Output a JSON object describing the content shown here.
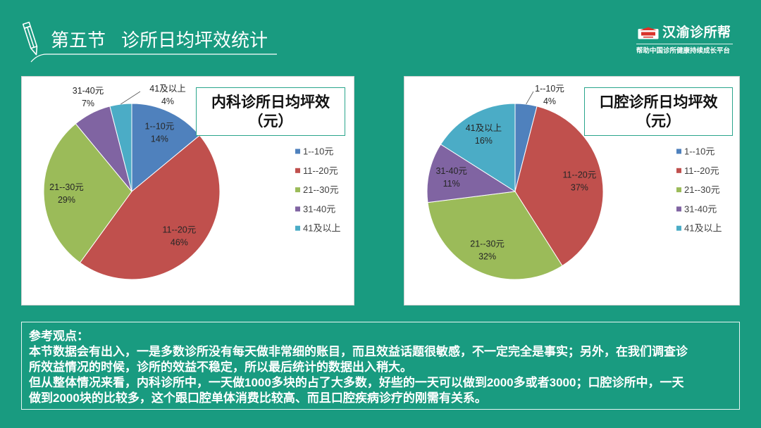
{
  "colors": {
    "background": "#199b80",
    "panel": "#ffffff",
    "slide_text": "#ffffff",
    "chart_title_border": "#2aa58c"
  },
  "header": {
    "icon": "pencil-icon",
    "section": "第五节",
    "title": "诊所日均坪效统计"
  },
  "brand": {
    "icon": "brand-logo-icon",
    "name": "汉渝诊所帮",
    "tagline": "帮助中国诊所健康持续成长平台"
  },
  "notes": {
    "heading": "参考观点：",
    "lines": [
      "本节数据会有出入，一是多数诊所没有每天做非常细的账目，而且效益话题很敏感，不一定完全是事实；另外，在我们调查诊",
      "所效益情况的时候，诊所的效益不稳定，所以最后统计的数据出入稍大。",
      "但从整体情况来看，内科诊所中，一天做1000多块的占了大多数，好些的一天可以做到2000多或者3000；口腔诊所中，一天",
      "做到2000块的比较多，这个跟口腔单体消费比较高、而且口腔疾病诊疗的刚需有关系。"
    ]
  },
  "chart_data": [
    {
      "type": "pie",
      "title": "内科诊所日均坪效",
      "title_unit": "（元）",
      "categories": [
        "1--10元",
        "11--20元",
        "21--30元",
        "31-40元",
        "41及以上"
      ],
      "values": [
        14,
        46,
        29,
        7,
        4
      ],
      "value_suffix": "%",
      "colors": [
        "#4f81bd",
        "#c0504d",
        "#9bbb59",
        "#8064a2",
        "#4bacc6"
      ],
      "legend": "right"
    },
    {
      "type": "pie",
      "title": "口腔诊所日均坪效",
      "title_unit": "（元）",
      "categories": [
        "1--10元",
        "11--20元",
        "21--30元",
        "31-40元",
        "41及以上"
      ],
      "values": [
        4,
        37,
        32,
        11,
        16
      ],
      "value_suffix": "%",
      "colors": [
        "#4f81bd",
        "#c0504d",
        "#9bbb59",
        "#8064a2",
        "#4bacc6"
      ],
      "legend": "right"
    }
  ]
}
